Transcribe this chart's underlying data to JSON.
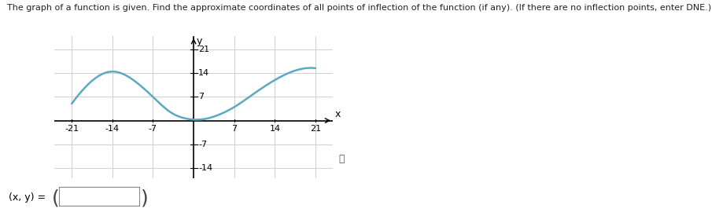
{
  "title": "The graph of a function is given. Find the approximate coordinates of all points of inflection of the function (if any). (If there are no inflection points, enter DNE.)",
  "title_fontsize": 8.0,
  "xlim": [
    -24,
    24
  ],
  "ylim": [
    -17,
    25
  ],
  "xticks": [
    -21,
    -14,
    -7,
    7,
    14,
    21
  ],
  "yticks": [
    -14,
    -7,
    7,
    14,
    21
  ],
  "curve_color": "#5ba8c4",
  "curve_linewidth": 1.8,
  "background_color": "#ffffff",
  "grid_color": "#d0d0d0",
  "axis_color": "#000000",
  "xlabel": "x",
  "ylabel": "y",
  "label_fontsize": 9,
  "tick_fontsize": 8.0,
  "input_label": "(x, y) =",
  "info_symbol": "ⓘ",
  "curve_points_x": [
    -21,
    -18,
    -14,
    -10,
    -7,
    -4,
    -1,
    0,
    2,
    4,
    7,
    10,
    14,
    17,
    21
  ],
  "curve_points_y": [
    5.0,
    11.0,
    14.5,
    11.5,
    7.0,
    2.5,
    0.5,
    0.3,
    0.5,
    1.5,
    4.0,
    7.5,
    12.0,
    14.5,
    15.5
  ]
}
